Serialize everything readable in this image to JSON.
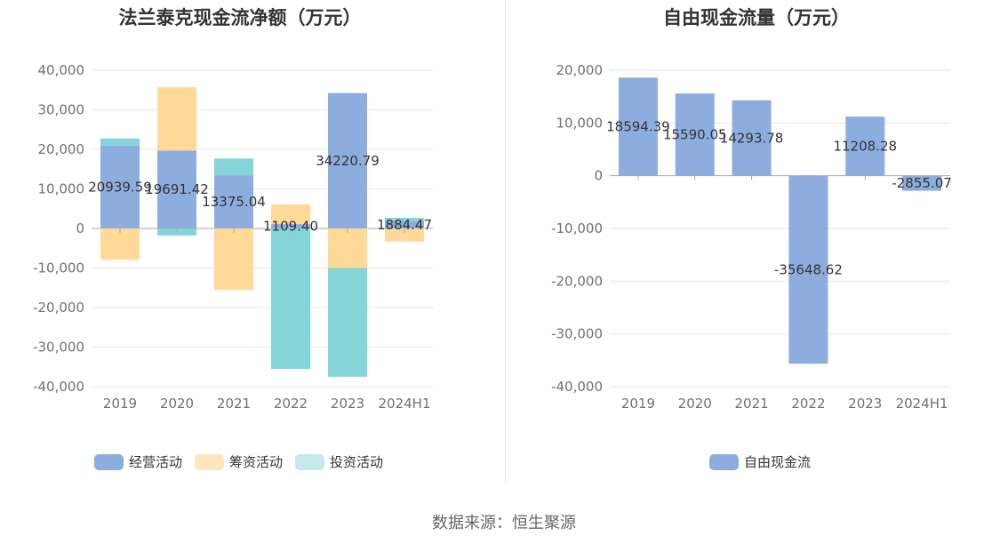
{
  "source_text": "数据来源：恒生聚源",
  "chart_data": [
    {
      "type": "bar",
      "stacked": true,
      "title": "法兰泰克现金流净额（万元）",
      "categories": [
        "2019",
        "2020",
        "2021",
        "2022",
        "2023",
        "2024H1"
      ],
      "ylim": [
        -40000,
        40000
      ],
      "yticks": [
        40000,
        30000,
        20000,
        10000,
        0,
        -10000,
        -20000,
        -30000,
        -40000
      ],
      "ytick_labels": [
        "40,000",
        "30,000",
        "20,000",
        "10,000",
        "0",
        "-10,000",
        "-20,000",
        "-30,000",
        "-40,000"
      ],
      "grid": true,
      "legend_position": "bottom",
      "series": [
        {
          "name": "经营活动",
          "color": "#8dadde",
          "values": [
            20939.59,
            19691.42,
            13375.04,
            1109.4,
            34220.79,
            1884.47
          ],
          "labels": [
            "20939.59",
            "19691.42",
            "13375.04",
            "1109.40",
            "34220.79",
            "1884.47"
          ]
        },
        {
          "name": "筹资活动",
          "color": "#fed997",
          "values": [
            -7900,
            16000,
            -15500,
            5000,
            -10000,
            -3300
          ]
        },
        {
          "name": "投资活动",
          "color": "#83d5d8",
          "values": [
            1800,
            -1800,
            4300,
            -35500,
            -27500,
            800
          ]
        }
      ]
    },
    {
      "type": "bar",
      "title": "自由现金流量（万元）",
      "categories": [
        "2019",
        "2020",
        "2021",
        "2022",
        "2023",
        "2024H1"
      ],
      "ylim": [
        -40000,
        20000
      ],
      "yticks": [
        20000,
        10000,
        0,
        -10000,
        -20000,
        -30000,
        -40000
      ],
      "ytick_labels": [
        "20,000",
        "10,000",
        "0",
        "-10,000",
        "-20,000",
        "-30,000",
        "-40,000"
      ],
      "grid": true,
      "legend_position": "bottom",
      "series": [
        {
          "name": "自由现金流",
          "color": "#8dadde",
          "values": [
            18594.39,
            15590.05,
            14293.78,
            -35648.62,
            11208.28,
            -2855.07
          ],
          "labels": [
            "18594.39",
            "15590.05",
            "14293.78",
            "-35648.62",
            "11208.28",
            "-2855.07"
          ]
        }
      ]
    }
  ]
}
